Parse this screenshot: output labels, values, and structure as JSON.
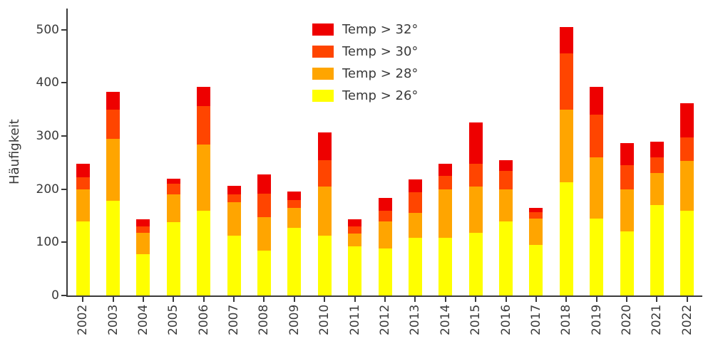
{
  "figure": {
    "background": "#ffffff",
    "axis_color": "#3a3a3a",
    "text_color": "#3a3a3a"
  },
  "chart_data": {
    "type": "bar",
    "stacked": true,
    "title": "",
    "xlabel": "",
    "ylabel": "Häufigkeit",
    "categories": [
      "2002",
      "2003",
      "2004",
      "2005",
      "2006",
      "2007",
      "2008",
      "2009",
      "2010",
      "2011",
      "2012",
      "2013",
      "2014",
      "2015",
      "2016",
      "2017",
      "2018",
      "2019",
      "2020",
      "2021",
      "2022"
    ],
    "series": [
      {
        "name": "Temp > 26°",
        "color": "#ffff00",
        "values": [
          140,
          178,
          78,
          138,
          160,
          113,
          84,
          127,
          113,
          92,
          88,
          108,
          108,
          118,
          140,
          95,
          213,
          145,
          120,
          170,
          160
        ]
      },
      {
        "name": "Temp > 28°",
        "color": "#ffa500",
        "values": [
          60,
          117,
          40,
          52,
          124,
          62,
          64,
          38,
          92,
          24,
          52,
          48,
          92,
          87,
          60,
          50,
          137,
          115,
          80,
          60,
          93
        ]
      },
      {
        "name": "Temp > 30°",
        "color": "#ff4500",
        "values": [
          22,
          55,
          12,
          20,
          72,
          15,
          44,
          15,
          50,
          14,
          20,
          38,
          25,
          43,
          35,
          12,
          105,
          80,
          45,
          30,
          44
        ]
      },
      {
        "name": "Temp > 32°",
        "color": "#ee0000",
        "values": [
          26,
          33,
          13,
          10,
          37,
          17,
          36,
          15,
          52,
          13,
          23,
          24,
          23,
          77,
          20,
          8,
          50,
          53,
          42,
          29,
          65
        ]
      }
    ],
    "yticks": [
      0,
      100,
      200,
      300,
      400,
      500
    ],
    "ylim": [
      0,
      540
    ],
    "grid": false,
    "legend": {
      "position": "upper center",
      "entries": [
        "Temp > 32°",
        "Temp > 30°",
        "Temp > 28°",
        "Temp > 26°"
      ]
    }
  }
}
